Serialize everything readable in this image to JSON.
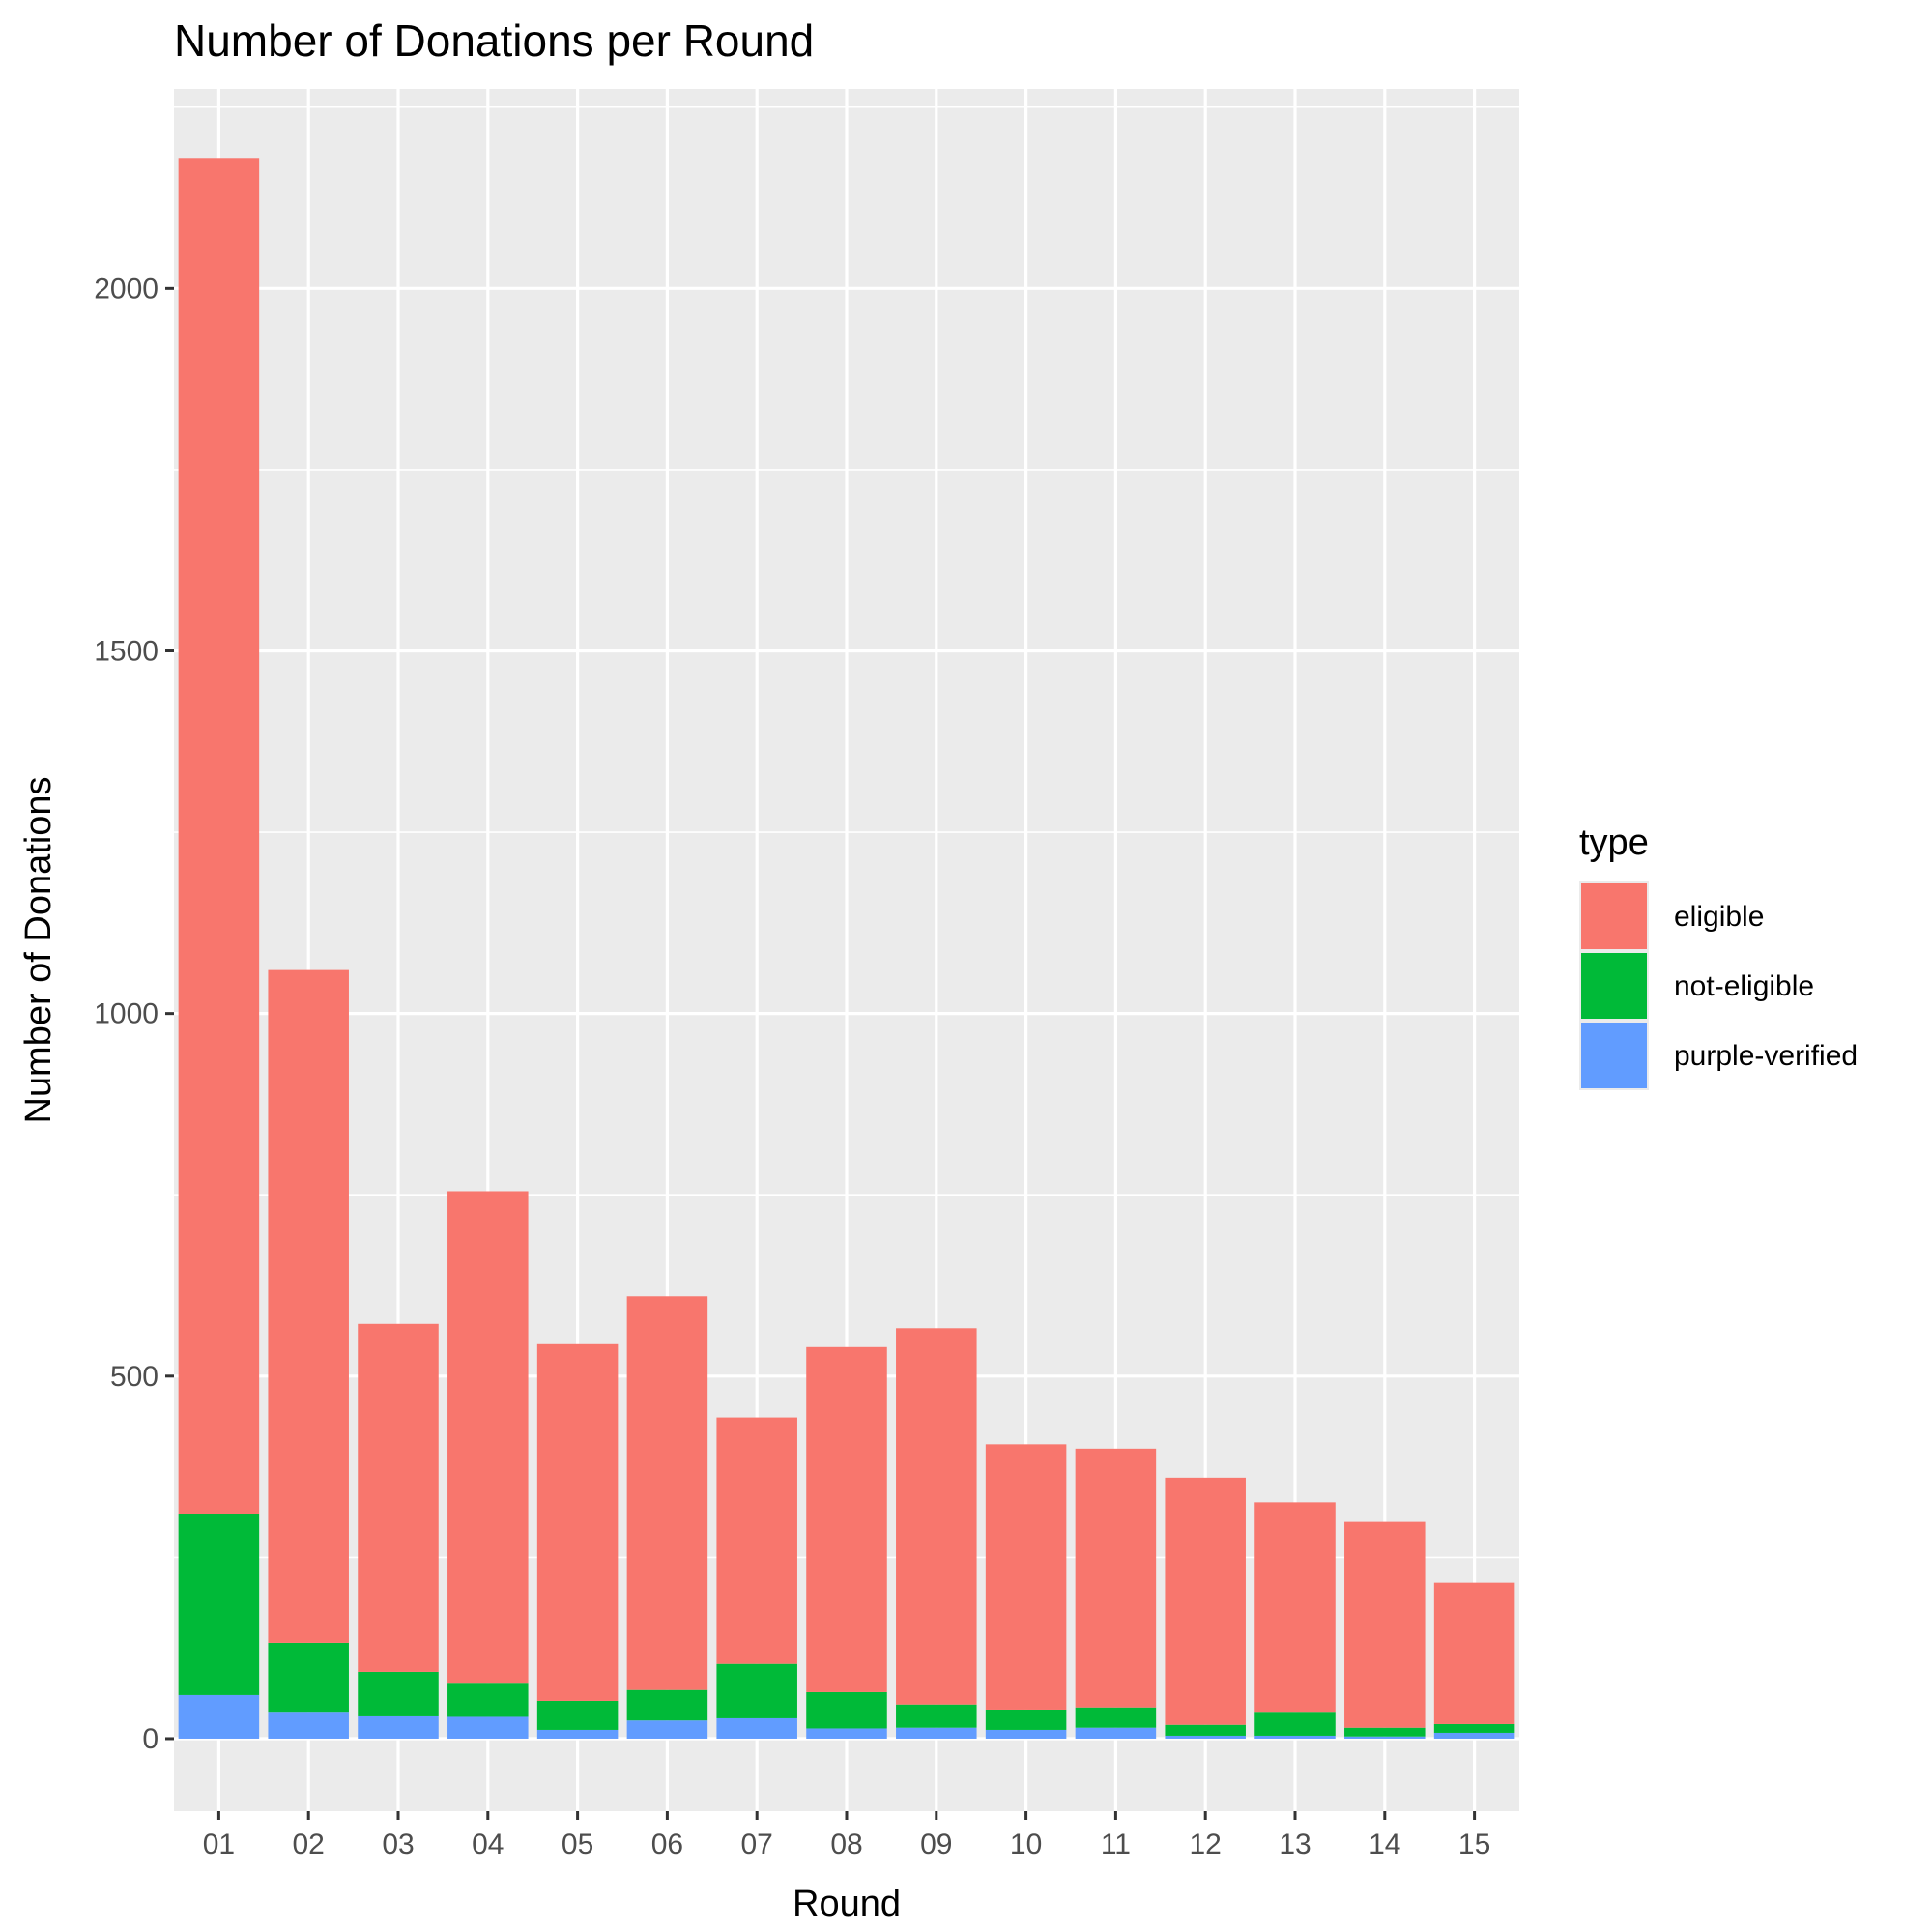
{
  "chart_data": {
    "type": "bar",
    "stacked": true,
    "title": "Number of Donations per Round",
    "xlabel": "Round",
    "ylabel": "Number of Donations",
    "categories": [
      "01",
      "02",
      "03",
      "04",
      "05",
      "06",
      "07",
      "08",
      "09",
      "10",
      "11",
      "12",
      "13",
      "14",
      "15"
    ],
    "series": [
      {
        "name": "purple-verified",
        "color": "#619CFF",
        "values": [
          60,
          37,
          32,
          30,
          12,
          25,
          28,
          14,
          15,
          12,
          15,
          4,
          4,
          3,
          8
        ]
      },
      {
        "name": "not-eligible",
        "color": "#00BA38",
        "values": [
          250,
          95,
          60,
          47,
          40,
          42,
          75,
          50,
          32,
          28,
          28,
          15,
          33,
          12,
          12
        ]
      },
      {
        "name": "eligible",
        "color": "#F8766D",
        "values": [
          1870,
          928,
          480,
          678,
          492,
          543,
          340,
          476,
          519,
          366,
          357,
          341,
          289,
          284,
          195
        ]
      }
    ],
    "ylim": [
      -100,
      2275
    ],
    "yticks": [
      0,
      500,
      1000,
      1500,
      2000
    ],
    "grid": true,
    "legend": {
      "title": "type",
      "placement": "right",
      "entries": [
        "eligible",
        "not-eligible",
        "purple-verified"
      ]
    }
  }
}
